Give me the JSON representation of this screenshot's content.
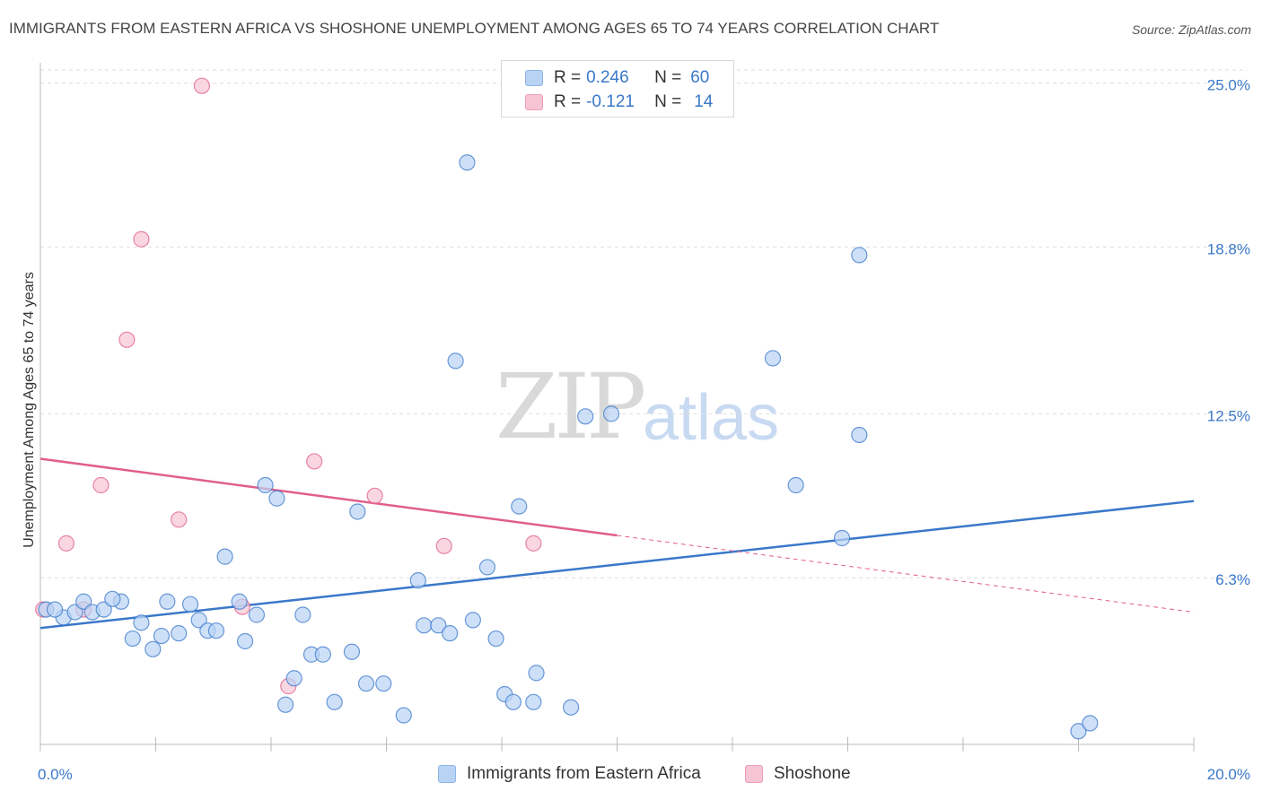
{
  "title": "IMMIGRANTS FROM EASTERN AFRICA VS SHOSHONE UNEMPLOYMENT AMONG AGES 65 TO 74 YEARS CORRELATION CHART",
  "source": "Source: ZipAtlas.com",
  "watermark": {
    "zip": "ZIP",
    "atlas": "atlas"
  },
  "legend": {
    "rows": [
      {
        "r_label": "R =",
        "r_value": "0.246",
        "n_label": "N =",
        "n_value": "60",
        "color": "#b9d3f5"
      },
      {
        "r_label": "R =",
        "r_value": "-0.121",
        "n_label": "N =",
        "n_value": "14",
        "color": "#f7c4d3"
      }
    ]
  },
  "bottom_legend": [
    {
      "label": "Immigrants from Eastern Africa",
      "color": "#b9d3f5"
    },
    {
      "label": "Shoshone",
      "color": "#f7c4d3"
    }
  ],
  "chart_data": {
    "type": "scatter",
    "title": "IMMIGRANTS FROM EASTERN AFRICA VS SHOSHONE UNEMPLOYMENT AMONG AGES 65 TO 74 YEARS CORRELATION CHART",
    "xlabel": "",
    "ylabel": "Unemployment Among Ages 65 to 74 years",
    "xlim": [
      0,
      20
    ],
    "ylim": [
      0,
      25.5
    ],
    "x_tick_labels": [
      {
        "value": 0,
        "label": "0.0%"
      },
      {
        "value": 20,
        "label": "20.0%"
      }
    ],
    "y_tick_labels": [
      {
        "value": 6.3,
        "label": "6.3%"
      },
      {
        "value": 12.5,
        "label": "12.5%"
      },
      {
        "value": 18.8,
        "label": "18.8%"
      },
      {
        "value": 25.0,
        "label": "25.0%"
      }
    ],
    "grid": "horizontal dashed",
    "legend_position": "top-center",
    "series": [
      {
        "name": "Immigrants from Eastern Africa",
        "color": "#3a78c9",
        "fill": "#b9d3f5",
        "trend": {
          "x": [
            0,
            20
          ],
          "y": [
            4.4,
            9.2
          ],
          "style": "solid"
        },
        "points": [
          [
            0.1,
            5.1
          ],
          [
            0.4,
            4.8
          ],
          [
            0.6,
            5.0
          ],
          [
            0.75,
            5.4
          ],
          [
            0.9,
            5.0
          ],
          [
            1.1,
            5.1
          ],
          [
            1.4,
            5.4
          ],
          [
            1.6,
            4.0
          ],
          [
            1.75,
            4.6
          ],
          [
            1.95,
            3.6
          ],
          [
            2.1,
            4.1
          ],
          [
            2.2,
            5.4
          ],
          [
            2.4,
            4.2
          ],
          [
            2.6,
            5.3
          ],
          [
            2.75,
            4.7
          ],
          [
            2.9,
            4.3
          ],
          [
            3.05,
            4.3
          ],
          [
            3.2,
            7.1
          ],
          [
            3.45,
            5.4
          ],
          [
            3.55,
            3.9
          ],
          [
            3.75,
            4.9
          ],
          [
            3.9,
            9.8
          ],
          [
            4.1,
            9.3
          ],
          [
            4.25,
            1.5
          ],
          [
            4.4,
            2.5
          ],
          [
            4.55,
            4.9
          ],
          [
            4.7,
            3.4
          ],
          [
            4.9,
            3.4
          ],
          [
            5.1,
            1.6
          ],
          [
            5.4,
            3.5
          ],
          [
            5.5,
            8.8
          ],
          [
            5.65,
            2.3
          ],
          [
            5.95,
            2.3
          ],
          [
            6.3,
            1.1
          ],
          [
            6.55,
            6.2
          ],
          [
            6.65,
            4.5
          ],
          [
            6.9,
            4.5
          ],
          [
            7.1,
            4.2
          ],
          [
            7.2,
            14.5
          ],
          [
            7.4,
            22.0
          ],
          [
            7.5,
            4.7
          ],
          [
            7.75,
            6.7
          ],
          [
            7.9,
            4.0
          ],
          [
            8.05,
            1.9
          ],
          [
            8.2,
            1.6
          ],
          [
            8.3,
            9.0
          ],
          [
            8.55,
            1.6
          ],
          [
            8.6,
            2.7
          ],
          [
            9.2,
            1.4
          ],
          [
            9.45,
            12.4
          ],
          [
            9.9,
            12.5
          ],
          [
            12.7,
            14.6
          ],
          [
            13.1,
            9.8
          ],
          [
            13.9,
            7.8
          ],
          [
            14.2,
            18.5
          ],
          [
            14.2,
            11.7
          ],
          [
            18.0,
            0.5
          ],
          [
            18.2,
            0.8
          ],
          [
            0.25,
            5.1
          ],
          [
            1.25,
            5.5
          ]
        ]
      },
      {
        "name": "Shoshone",
        "color": "#e05f8b",
        "fill": "#f7c4d3",
        "trend": {
          "x": [
            0,
            20
          ],
          "y": [
            10.8,
            5.0
          ],
          "solid_until_x": 10,
          "style": "solid then dashed"
        },
        "points": [
          [
            0.05,
            5.1
          ],
          [
            0.45,
            7.6
          ],
          [
            0.75,
            5.1
          ],
          [
            1.05,
            9.8
          ],
          [
            1.5,
            15.3
          ],
          [
            1.75,
            19.1
          ],
          [
            2.4,
            8.5
          ],
          [
            2.8,
            24.9
          ],
          [
            3.5,
            5.2
          ],
          [
            4.3,
            2.2
          ],
          [
            4.75,
            10.7
          ],
          [
            5.8,
            9.4
          ],
          [
            7.0,
            7.5
          ],
          [
            8.55,
            7.6
          ]
        ]
      }
    ]
  }
}
